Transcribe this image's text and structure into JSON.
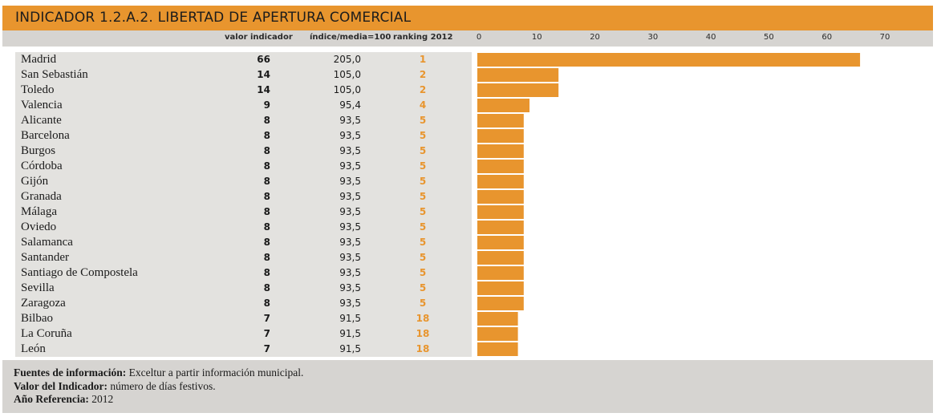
{
  "title": "INDICADOR 1.2.A.2. LIBERTAD DE APERTURA COMERCIAL",
  "columns": {
    "valor": "valor indicador",
    "indice": "índice/media=100",
    "ranking": "ranking 2012"
  },
  "chart_data": {
    "type": "bar",
    "orientation": "horizontal",
    "xlim": [
      0,
      70
    ],
    "ticks": [
      "0",
      "10",
      "20",
      "30",
      "40",
      "50",
      "60",
      "70"
    ],
    "tick_values": [
      0,
      10,
      20,
      30,
      40,
      50,
      60,
      70
    ],
    "bar_color": "#E8952E",
    "rows": [
      {
        "city": "Madrid",
        "valor": 66,
        "indice": "205,0",
        "ranking": "1"
      },
      {
        "city": "San Sebastián",
        "valor": 14,
        "indice": "105,0",
        "ranking": "2"
      },
      {
        "city": "Toledo",
        "valor": 14,
        "indice": "105,0",
        "ranking": "2"
      },
      {
        "city": "Valencia",
        "valor": 9,
        "indice": "95,4",
        "ranking": "4"
      },
      {
        "city": "Alicante",
        "valor": 8,
        "indice": "93,5",
        "ranking": "5"
      },
      {
        "city": "Barcelona",
        "valor": 8,
        "indice": "93,5",
        "ranking": "5"
      },
      {
        "city": "Burgos",
        "valor": 8,
        "indice": "93,5",
        "ranking": "5"
      },
      {
        "city": "Córdoba",
        "valor": 8,
        "indice": "93,5",
        "ranking": "5"
      },
      {
        "city": "Gijón",
        "valor": 8,
        "indice": "93,5",
        "ranking": "5"
      },
      {
        "city": "Granada",
        "valor": 8,
        "indice": "93,5",
        "ranking": "5"
      },
      {
        "city": "Málaga",
        "valor": 8,
        "indice": "93,5",
        "ranking": "5"
      },
      {
        "city": "Oviedo",
        "valor": 8,
        "indice": "93,5",
        "ranking": "5"
      },
      {
        "city": "Salamanca",
        "valor": 8,
        "indice": "93,5",
        "ranking": "5"
      },
      {
        "city": "Santander",
        "valor": 8,
        "indice": "93,5",
        "ranking": "5"
      },
      {
        "city": "Santiago de Compostela",
        "valor": 8,
        "indice": "93,5",
        "ranking": "5"
      },
      {
        "city": "Sevilla",
        "valor": 8,
        "indice": "93,5",
        "ranking": "5"
      },
      {
        "city": "Zaragoza",
        "valor": 8,
        "indice": "93,5",
        "ranking": "5"
      },
      {
        "city": "Bilbao",
        "valor": 7,
        "indice": "91,5",
        "ranking": "18"
      },
      {
        "city": "La Coruña",
        "valor": 7,
        "indice": "91,5",
        "ranking": "18"
      },
      {
        "city": "León",
        "valor": 7,
        "indice": "91,5",
        "ranking": "18"
      }
    ]
  },
  "footer": {
    "fuentes_label": "Fuentes de información:",
    "fuentes_text": " Exceltur a partir información municipal.",
    "valor_label": "Valor del Indicador:",
    "valor_text": " número de días festivos.",
    "anio_label": "Año Referencia:",
    "anio_text": " 2012"
  }
}
